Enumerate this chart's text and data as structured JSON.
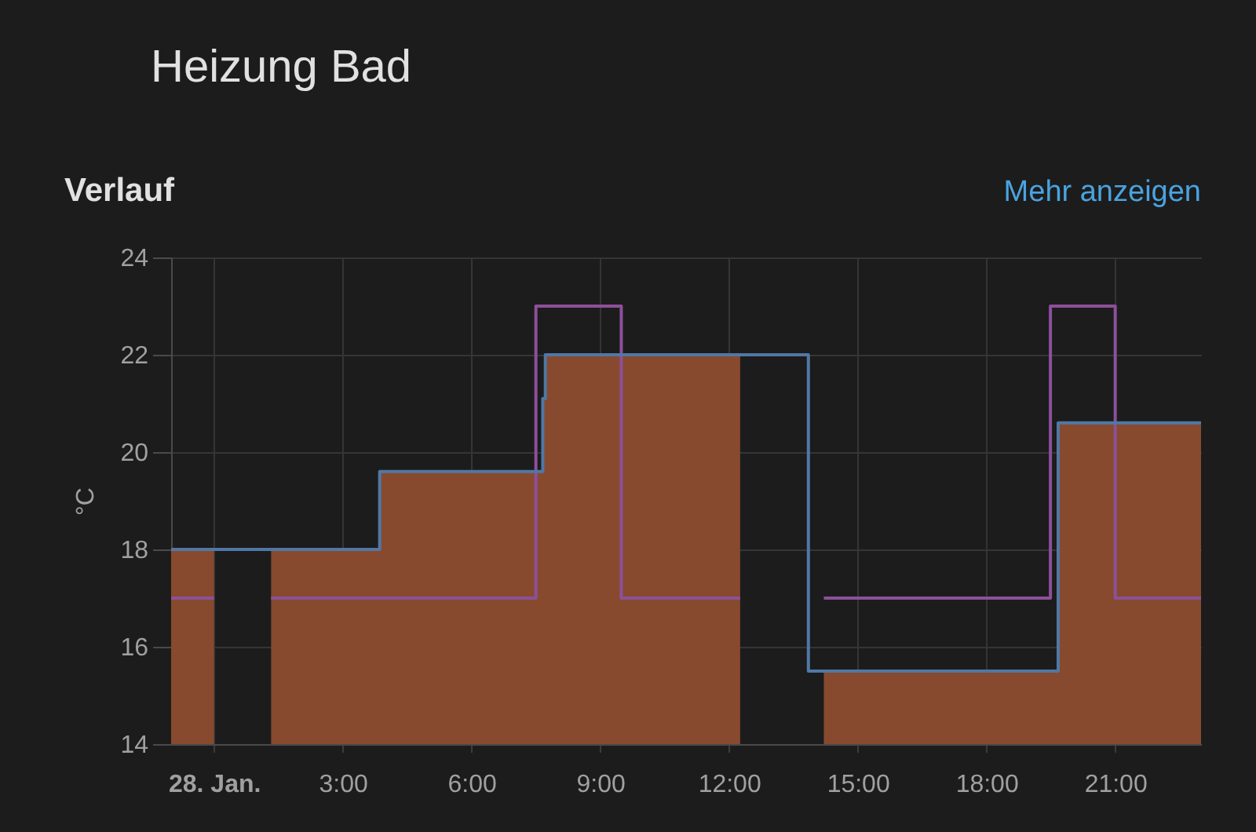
{
  "chart_data": {
    "type": "step",
    "title": "Heizung Bad",
    "subtitle": "Verlauf",
    "ylabel": "°C",
    "annotations": [
      "Mehr anzeigen"
    ],
    "xlim": [
      -1,
      23
    ],
    "xticks": [
      {
        "value": 0,
        "label": "28. Jan."
      },
      {
        "value": 3,
        "label": "3:00"
      },
      {
        "value": 6,
        "label": "6:00"
      },
      {
        "value": 9,
        "label": "9:00"
      },
      {
        "value": 12,
        "label": "12:00"
      },
      {
        "value": 15,
        "label": "15:00"
      },
      {
        "value": 18,
        "label": "18:00"
      },
      {
        "value": 21,
        "label": "21:00"
      }
    ],
    "ylim": [
      14,
      24
    ],
    "yticks": [
      14,
      16,
      18,
      20,
      22,
      24
    ],
    "grid": true,
    "series": [
      {
        "type": "area",
        "color": "#874a2e",
        "x": [
          -1,
          0,
          1.33,
          3.86,
          7.66,
          7.72,
          12.26,
          14.21,
          19.67,
          23
        ],
        "values": [
          18,
          null,
          18,
          19.6,
          21.1,
          22,
          null,
          15.5,
          20.6,
          20.6
        ]
      },
      {
        "color": "#8c509b",
        "x": [
          -1,
          0,
          1.33,
          7.5,
          9.49,
          12.26,
          14.21,
          19.49,
          21,
          23
        ],
        "values": [
          17,
          null,
          17,
          23,
          17,
          null,
          17,
          23,
          17,
          17
        ]
      },
      {
        "color": "#5078a5",
        "x": [
          -1,
          3.86,
          7.66,
          7.72,
          13.85,
          19.67,
          23
        ],
        "values": [
          18,
          19.6,
          21.1,
          22,
          15.5,
          20.6,
          20.6
        ]
      }
    ]
  }
}
